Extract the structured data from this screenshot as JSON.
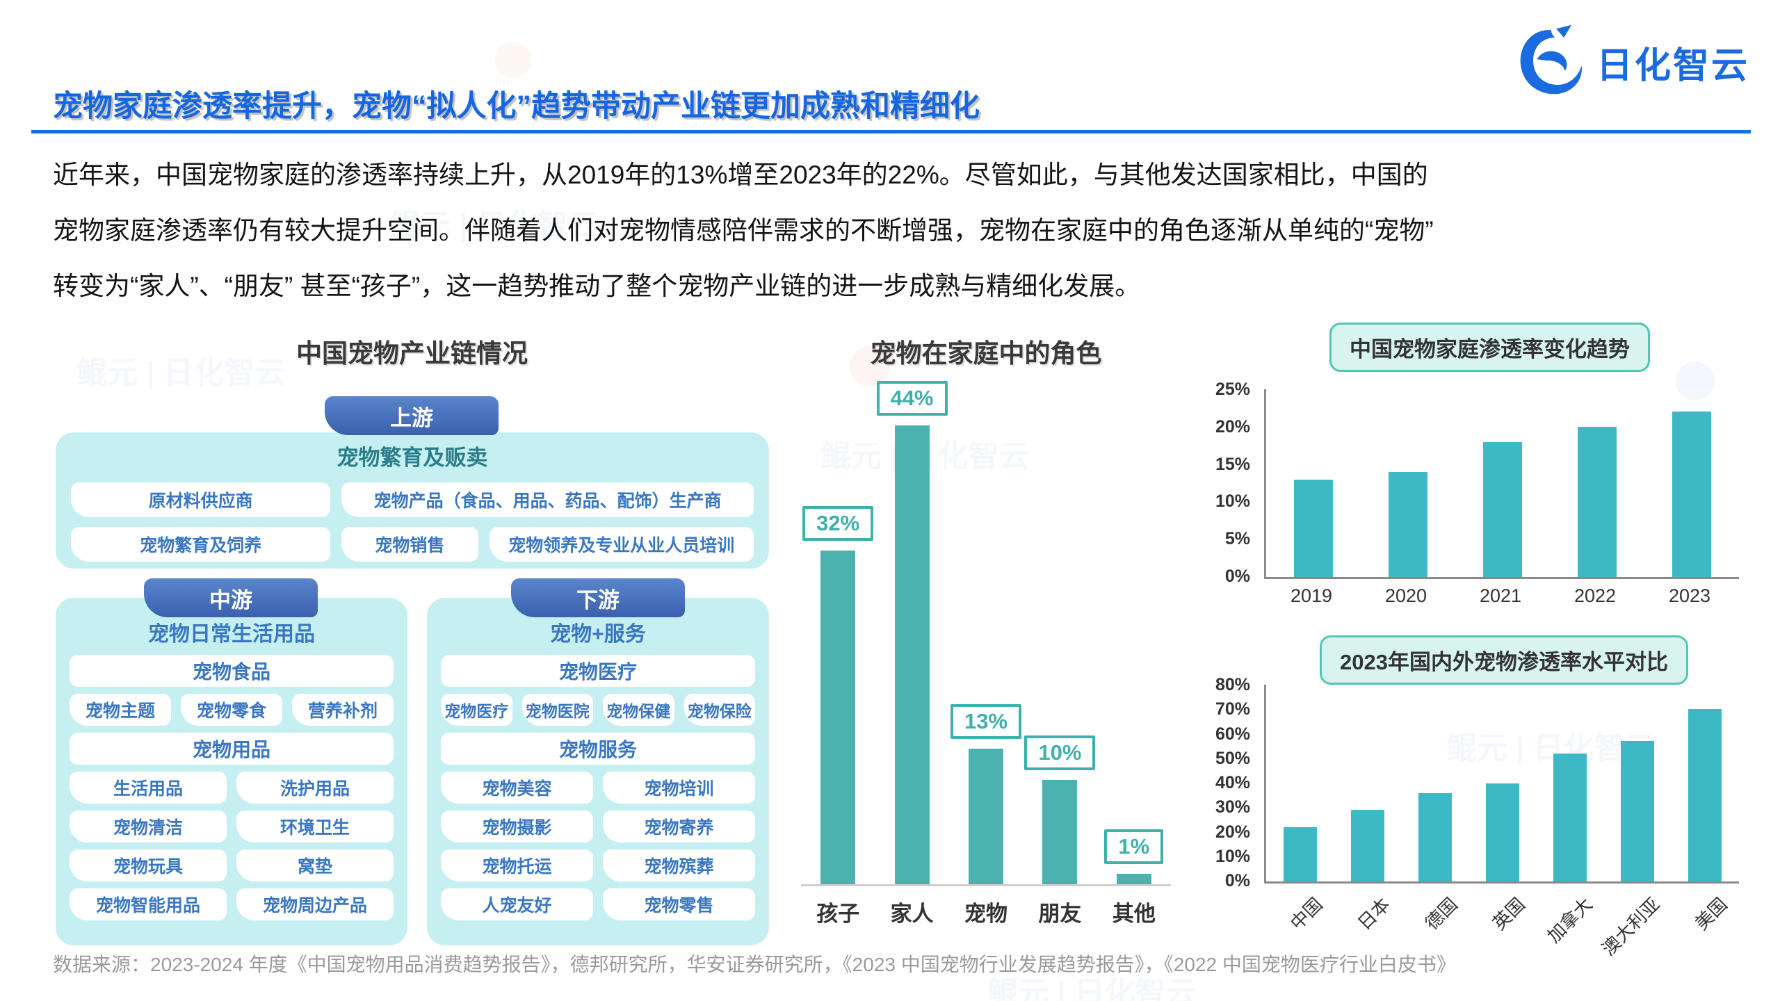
{
  "logo": {
    "text": "日化智云"
  },
  "watermark": {
    "text": "鲲元 | 日化智云"
  },
  "header": {
    "title": "宠物家庭渗透率提升，宠物“拟人化”趋势带动产业链更加成熟和精细化"
  },
  "intro": {
    "lines": [
      "近年来，中国宠物家庭的渗透率持续上升，从2019年的13%增至2023年的22%。尽管如此，与其他发达国家相比，中国的",
      "宠物家庭渗透率仍有较大提升空间。伴随着人们对宠物情感陪伴需求的不断增强，宠物在家庭中的角色逐渐从单纯的“宠物”",
      "转变为“家人”、“朋友” 甚至“孩子”，这一趋势推动了整个宠物产业链的进一步成熟与精细化发展。"
    ]
  },
  "industry_chain": {
    "title": "中国宠物产业链情况",
    "upstream": {
      "tab": "上游",
      "header": "宠物繁育及贩卖",
      "row1": [
        "原材料供应商",
        "宠物产品（食品、用品、药品、配饰）生产商"
      ],
      "row2": [
        "宠物繁育及饲养",
        "宠物销售",
        "宠物领养及专业从业人员培训"
      ]
    },
    "midstream": {
      "tab": "中游",
      "header": "宠物日常生活用品",
      "groups": [
        {
          "bar": "宠物食品",
          "pills": [
            "宠物主题",
            "宠物零食",
            "营养补剂"
          ]
        },
        {
          "bar": "宠物用品",
          "pills": [
            "生活用品",
            "洗护用品",
            "宠物清洁",
            "环境卫生",
            "宠物玩具",
            "窝垫",
            "宠物智能用品",
            "宠物周边产品"
          ]
        }
      ]
    },
    "downstream": {
      "tab": "下游",
      "header": "宠物+服务",
      "groups": [
        {
          "bar": "宠物医疗",
          "pills": [
            "宠物医疗",
            "宠物医院",
            "宠物保健",
            "宠物保险"
          ]
        },
        {
          "bar": "宠物服务",
          "pills": [
            "宠物美容",
            "宠物培训",
            "宠物摄影",
            "宠物寄养",
            "宠物托运",
            "宠物殡葬",
            "人宠友好",
            "宠物零售"
          ]
        }
      ]
    }
  },
  "chart_data": [
    {
      "type": "bar",
      "title": "宠物在家庭中的角色",
      "categories": [
        "孩子",
        "家人",
        "宠物",
        "朋友",
        "其他"
      ],
      "values": [
        32,
        44,
        13,
        10,
        1
      ],
      "data_labels": [
        "32%",
        "44%",
        "13%",
        "10%",
        "1%"
      ],
      "ylim": [
        0,
        50
      ],
      "grid": false,
      "legend": "none"
    },
    {
      "type": "bar",
      "title": "中国宠物家庭渗透率变化趋势",
      "categories": [
        "2019",
        "2020",
        "2021",
        "2022",
        "2023"
      ],
      "values": [
        13,
        14,
        18,
        20,
        22
      ],
      "yticks": [
        "25%",
        "20%",
        "15%",
        "10%",
        "5%",
        "0%"
      ],
      "ylim": [
        0,
        25
      ],
      "grid": false,
      "legend": "none"
    },
    {
      "type": "bar",
      "title": "2023年国内外宠物渗透率水平对比",
      "categories": [
        "中国",
        "日本",
        "德国",
        "英国",
        "加拿大",
        "澳大利亚",
        "美国"
      ],
      "values": [
        22,
        29,
        36,
        40,
        52,
        57,
        70
      ],
      "yticks": [
        "80%",
        "70%",
        "60%",
        "50%",
        "40%",
        "30%",
        "20%",
        "10%",
        "0%"
      ],
      "ylim": [
        0,
        80
      ],
      "grid": false,
      "legend": "none",
      "xtick_rotation": 45
    }
  ],
  "source": {
    "text": "数据来源：2023-2024 年度《中国宠物用品消费趋势报告》，德邦研究所，华安证券研究所，《2023 中国宠物行业发展趋势报告》，《2022 中国宠物医疗行业白皮书》"
  },
  "colors": {
    "brand_blue": "#1a6be0",
    "tab_blue": "#4472bd",
    "panel_cyan": "#c6eff2",
    "pill_text_blue": "#3a77c2",
    "upstream_header_teal": "#2c7d8a",
    "bar_teal_mid": "#4cb2b0",
    "bar_teal_right": "#3db9c5",
    "label_teal": "#3fb0ab",
    "badge_bg": "#d8f4ef",
    "badge_border": "#52c5b8",
    "source_gray": "#9a9a9a"
  }
}
